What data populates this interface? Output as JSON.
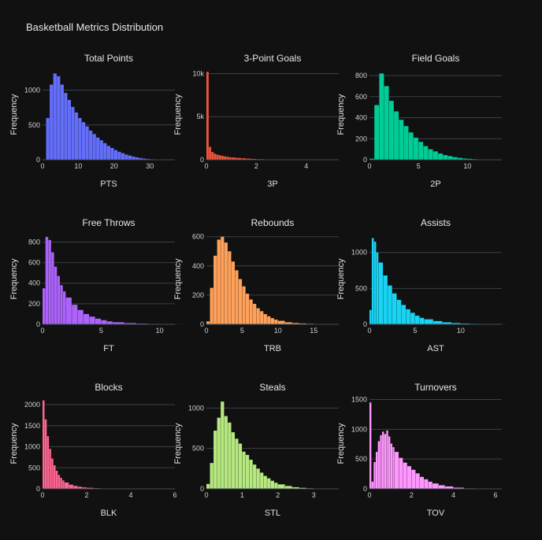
{
  "title": "Basketball Metrics Distribution",
  "chart_data": [
    {
      "type": "bar",
      "title": "Total Points",
      "xlabel": "PTS",
      "ylabel": "Frequency",
      "color": "#636efa",
      "xlim": [
        0,
        37
      ],
      "ylim": [
        0,
        1300
      ],
      "xticks": [
        0,
        10,
        20,
        30
      ],
      "yticks": [
        0,
        500,
        1000
      ],
      "ytick_labels": [
        "0",
        "500",
        "1000"
      ],
      "x": [
        0,
        1,
        2,
        3,
        4,
        5,
        6,
        7,
        8,
        9,
        10,
        11,
        12,
        13,
        14,
        15,
        16,
        17,
        18,
        19,
        20,
        21,
        22,
        23,
        24,
        25,
        26,
        27,
        28,
        29,
        30,
        31,
        32,
        33,
        34,
        35,
        36
      ],
      "values": [
        0,
        600,
        1080,
        1240,
        1200,
        1080,
        960,
        860,
        760,
        680,
        600,
        540,
        480,
        420,
        370,
        320,
        280,
        240,
        200,
        170,
        140,
        115,
        95,
        75,
        60,
        45,
        35,
        25,
        18,
        12,
        8,
        6,
        4,
        3,
        2,
        1,
        0
      ]
    },
    {
      "type": "bar",
      "title": "3-Point Goals",
      "xlabel": "3P",
      "ylabel": "Frequency",
      "color": "#ef553b",
      "xlim": [
        0,
        5.3
      ],
      "ylim": [
        0,
        10500
      ],
      "xticks": [
        0,
        2,
        4
      ],
      "yticks": [
        0,
        5000,
        10000
      ],
      "ytick_labels": [
        "0",
        "5k",
        "10k"
      ],
      "x": [
        0,
        0.1,
        0.2,
        0.3,
        0.4,
        0.5,
        0.6,
        0.7,
        0.8,
        0.9,
        1.0,
        1.2,
        1.4,
        1.6,
        1.8,
        2.0,
        2.3,
        2.6,
        3.0,
        3.5,
        4.0,
        4.5,
        5.0
      ],
      "values": [
        10200,
        1500,
        900,
        700,
        600,
        520,
        460,
        400,
        350,
        300,
        260,
        210,
        170,
        130,
        100,
        70,
        45,
        30,
        18,
        10,
        5,
        3,
        1
      ]
    },
    {
      "type": "bar",
      "title": "Field Goals",
      "xlabel": "2P",
      "ylabel": "Frequency",
      "color": "#00cc96",
      "xlim": [
        0,
        13.5
      ],
      "ylim": [
        0,
        860
      ],
      "xticks": [
        0,
        5,
        10
      ],
      "yticks": [
        0,
        200,
        400,
        600,
        800
      ],
      "ytick_labels": [
        "0",
        "200",
        "400",
        "600",
        "800"
      ],
      "x": [
        0,
        0.5,
        1,
        1.5,
        2,
        2.5,
        3,
        3.5,
        4,
        4.5,
        5,
        5.5,
        6,
        6.5,
        7,
        7.5,
        8,
        8.5,
        9,
        9.5,
        10,
        10.5,
        11,
        11.5,
        12,
        12.5,
        13
      ],
      "values": [
        10,
        520,
        820,
        700,
        560,
        460,
        380,
        320,
        260,
        210,
        170,
        130,
        100,
        80,
        60,
        45,
        35,
        25,
        18,
        12,
        9,
        6,
        4,
        3,
        2,
        1,
        0
      ]
    },
    {
      "type": "bar",
      "title": "Free Throws",
      "xlabel": "FT",
      "ylabel": "Frequency",
      "color": "#ab63fa",
      "xlim": [
        0,
        11.3
      ],
      "ylim": [
        0,
        880
      ],
      "xticks": [
        0,
        5,
        10
      ],
      "yticks": [
        0,
        200,
        400,
        600,
        800
      ],
      "ytick_labels": [
        "0",
        "200",
        "400",
        "600",
        "800"
      ],
      "x": [
        0,
        0.25,
        0.5,
        0.75,
        1,
        1.25,
        1.5,
        1.75,
        2,
        2.5,
        3,
        3.5,
        4,
        4.5,
        5,
        5.5,
        6,
        7,
        8,
        9,
        10,
        11
      ],
      "values": [
        350,
        850,
        820,
        700,
        560,
        470,
        380,
        320,
        260,
        190,
        140,
        100,
        75,
        55,
        40,
        28,
        20,
        12,
        7,
        4,
        2,
        1
      ]
    },
    {
      "type": "bar",
      "title": "Rebounds",
      "xlabel": "TRB",
      "ylabel": "Frequency",
      "color": "#ffa15a",
      "xlim": [
        0,
        18.5
      ],
      "ylim": [
        0,
        620
      ],
      "xticks": [
        0,
        5,
        10,
        15
      ],
      "yticks": [
        0,
        200,
        400,
        600
      ],
      "ytick_labels": [
        "0",
        "200",
        "400",
        "600"
      ],
      "x": [
        0,
        0.5,
        1,
        1.5,
        2,
        2.5,
        3,
        3.5,
        4,
        4.5,
        5,
        5.5,
        6,
        6.5,
        7,
        7.5,
        8,
        8.5,
        9,
        9.5,
        10,
        11,
        12,
        13,
        14,
        15,
        16,
        17,
        18
      ],
      "values": [
        20,
        250,
        470,
        580,
        600,
        560,
        500,
        430,
        370,
        310,
        260,
        210,
        170,
        140,
        110,
        90,
        70,
        55,
        42,
        32,
        24,
        14,
        9,
        6,
        4,
        2,
        1,
        1,
        0
      ]
    },
    {
      "type": "bar",
      "title": "Assists",
      "xlabel": "AST",
      "ylabel": "Frequency",
      "color": "#19d3f3",
      "xlim": [
        0,
        14.5
      ],
      "ylim": [
        0,
        1260
      ],
      "xticks": [
        0,
        5,
        10
      ],
      "yticks": [
        0,
        500,
        1000
      ],
      "ytick_labels": [
        "0",
        "500",
        "1000"
      ],
      "x": [
        0,
        0.25,
        0.5,
        0.75,
        1,
        1.5,
        2,
        2.5,
        3,
        3.5,
        4,
        4.5,
        5,
        5.5,
        6,
        7,
        8,
        9,
        10,
        11,
        12,
        13,
        14
      ],
      "values": [
        200,
        1200,
        1150,
        1000,
        860,
        680,
        540,
        430,
        340,
        270,
        210,
        160,
        120,
        90,
        70,
        45,
        28,
        18,
        11,
        7,
        4,
        2,
        1
      ]
    },
    {
      "type": "bar",
      "title": "Blocks",
      "xlabel": "BLK",
      "ylabel": "Frequency",
      "color": "#ff6692",
      "xlim": [
        0,
        6
      ],
      "ylim": [
        0,
        2150
      ],
      "xticks": [
        0,
        2,
        4,
        6
      ],
      "yticks": [
        0,
        500,
        1000,
        1500,
        2000
      ],
      "ytick_labels": [
        "0",
        "500",
        "1000",
        "1500",
        "2000"
      ],
      "x": [
        0,
        0.1,
        0.2,
        0.3,
        0.4,
        0.5,
        0.6,
        0.7,
        0.8,
        0.9,
        1.0,
        1.2,
        1.4,
        1.6,
        1.8,
        2.0,
        2.3,
        2.6,
        3.0,
        3.5,
        4.0
      ],
      "values": [
        2100,
        1650,
        1250,
        950,
        720,
        560,
        430,
        330,
        260,
        200,
        150,
        100,
        70,
        50,
        35,
        25,
        15,
        10,
        6,
        3,
        1
      ]
    },
    {
      "type": "bar",
      "title": "Steals",
      "xlabel": "STL",
      "ylabel": "Frequency",
      "color": "#b6e880",
      "xlim": [
        0,
        3.7
      ],
      "ylim": [
        0,
        1120
      ],
      "xticks": [
        0,
        1,
        2,
        3
      ],
      "yticks": [
        0,
        500,
        1000
      ],
      "ytick_labels": [
        "0",
        "500",
        "1000"
      ],
      "x": [
        0,
        0.1,
        0.2,
        0.3,
        0.4,
        0.5,
        0.6,
        0.7,
        0.8,
        0.9,
        1.0,
        1.1,
        1.2,
        1.3,
        1.4,
        1.5,
        1.6,
        1.7,
        1.8,
        1.9,
        2.0,
        2.2,
        2.4,
        2.6,
        2.8,
        3.0,
        3.3
      ],
      "values": [
        60,
        320,
        720,
        880,
        1080,
        900,
        820,
        700,
        620,
        560,
        460,
        420,
        360,
        300,
        250,
        200,
        160,
        130,
        100,
        75,
        55,
        35,
        20,
        12,
        7,
        3,
        1
      ]
    },
    {
      "type": "bar",
      "title": "Turnovers",
      "xlabel": "TOV",
      "ylabel": "Frequency",
      "color": "#ff97ff",
      "xlim": [
        0,
        6.3
      ],
      "ylim": [
        0,
        1520
      ],
      "xticks": [
        0,
        2,
        4,
        6
      ],
      "yticks": [
        0,
        500,
        1000,
        1500
      ],
      "ytick_labels": [
        "0",
        "500",
        "1000",
        "1500"
      ],
      "x": [
        0,
        0.1,
        0.2,
        0.3,
        0.4,
        0.5,
        0.6,
        0.7,
        0.8,
        0.9,
        1.0,
        1.1,
        1.2,
        1.4,
        1.6,
        1.8,
        2.0,
        2.2,
        2.4,
        2.6,
        2.8,
        3.0,
        3.3,
        3.6,
        4.0,
        4.5,
        5.0
      ],
      "values": [
        1450,
        120,
        450,
        620,
        800,
        900,
        960,
        920,
        980,
        880,
        760,
        700,
        620,
        520,
        440,
        380,
        320,
        260,
        200,
        160,
        120,
        90,
        60,
        40,
        20,
        8,
        3
      ]
    }
  ]
}
